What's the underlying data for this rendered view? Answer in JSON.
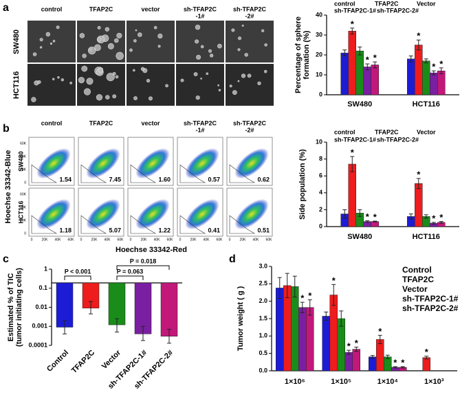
{
  "panel_labels": [
    "a",
    "b",
    "c",
    "d"
  ],
  "spheres": {
    "columns": [
      [
        "control"
      ],
      [
        "TFAP2C"
      ],
      [
        "vector"
      ],
      [
        "sh-TFAP2C",
        "-1#"
      ],
      [
        "sh-TFAP2C",
        "-2#"
      ]
    ],
    "rows": [
      "SW480",
      "HCT116"
    ]
  },
  "flow": {
    "columns": [
      [
        "control"
      ],
      [
        "TFAP2C"
      ],
      [
        "vector"
      ],
      [
        "sh-TFAP2C",
        "-1#"
      ],
      [
        "sh-TFAP2C",
        "-2#"
      ]
    ],
    "rows": [
      "SW480",
      "HCT116"
    ],
    "values": [
      [
        "1.54",
        "7.45",
        "1.60",
        "0.57",
        "0.62"
      ],
      [
        "1.18",
        "5.07",
        "1.22",
        "0.41",
        "0.51"
      ]
    ],
    "x_label": "Hoechse 33342-Red",
    "y_label": "Hoechse 33342-Blue",
    "ticks": [
      "0",
      "20K",
      "40K",
      "60K"
    ]
  },
  "chart_data": [
    {
      "type": "bar",
      "y_label": [
        "Percentage of sphere",
        "formation (%)"
      ],
      "categories": [
        "SW480",
        "HCT116"
      ],
      "ylim": [
        0,
        40
      ],
      "yticks": [
        0,
        10,
        20,
        30,
        40
      ],
      "series": [
        {
          "name": "control",
          "color": "#1c1cd6",
          "values": [
            21,
            18
          ],
          "errors": [
            1.5,
            1.5
          ]
        },
        {
          "name": "TFAP2C",
          "color": "#ee1c1c",
          "values": [
            32,
            25
          ],
          "errors": [
            1.5,
            2.5
          ],
          "annotations": [
            "*",
            "*"
          ]
        },
        {
          "name": "Vector",
          "color": "#1a8c1a",
          "values": [
            22,
            17
          ],
          "errors": [
            2,
            1
          ]
        },
        {
          "name": "sh-TFAP2C-1#",
          "color": "#7b1fa2",
          "values": [
            14,
            11
          ],
          "errors": [
            1.5,
            1
          ],
          "annotations": [
            "*",
            "*"
          ]
        },
        {
          "name": "sh-TFAP2C-2#",
          "color": "#c2187a",
          "values": [
            15,
            12
          ],
          "errors": [
            1.5,
            1.5
          ],
          "annotations": [
            "*",
            "*"
          ]
        }
      ]
    },
    {
      "type": "bar",
      "y_label": [
        "Side population (%)"
      ],
      "categories": [
        "SW480",
        "HCT116"
      ],
      "ylim": [
        0,
        10
      ],
      "yticks": [
        0,
        2,
        4,
        6,
        8,
        10
      ],
      "series": [
        {
          "name": "control",
          "color": "#1c1cd6",
          "values": [
            1.5,
            1.2
          ],
          "errors": [
            0.5,
            0.3
          ]
        },
        {
          "name": "TFAP2C",
          "color": "#ee1c1c",
          "values": [
            7.4,
            5.1
          ],
          "errors": [
            0.9,
            0.6
          ],
          "annotations": [
            "*",
            "*"
          ]
        },
        {
          "name": "Vector",
          "color": "#1a8c1a",
          "values": [
            1.6,
            1.2
          ],
          "errors": [
            0.4,
            0.2
          ]
        },
        {
          "name": "sh-TFAP2C-1#",
          "color": "#7b1fa2",
          "values": [
            0.6,
            0.4
          ],
          "errors": [
            0.1,
            0.1
          ],
          "annotations": [
            "*",
            "*"
          ]
        },
        {
          "name": "sh-TFAP2C-2#",
          "color": "#c2187a",
          "values": [
            0.6,
            0.5
          ],
          "errors": [
            0.05,
            0.1
          ],
          "annotations": [
            "*",
            "*"
          ]
        }
      ]
    },
    {
      "type": "bar",
      "log_scale": true,
      "y_label": [
        "Estimated % of TIC",
        "(tumor initiating cells)"
      ],
      "categories": [
        "Control",
        "TFAP2C",
        "Vector",
        "sh-TFAP2C-1#",
        "sh-TFAP2C-2#"
      ],
      "values": [
        0.0009,
        0.009,
        0.0012,
        0.0004,
        0.0003
      ],
      "error_ranges": [
        [
          0.0004,
          0.002
        ],
        [
          0.0045,
          0.02
        ],
        [
          0.0005,
          0.0025
        ],
        [
          0.00018,
          0.001
        ],
        [
          0.00013,
          0.0007
        ]
      ],
      "colors": [
        "#1c1cd6",
        "#ee1c1c",
        "#1a8c1a",
        "#7b1fa2",
        "#c2187a"
      ],
      "ylim": [
        0.0001,
        1
      ],
      "yticks": [
        0.0001,
        0.001,
        0.01,
        0.1,
        1
      ],
      "annotations": [
        "P < 0.001",
        "P = 0.063",
        "P = 0.018"
      ]
    },
    {
      "type": "bar",
      "y_label": [
        "Tumor weight ( g )"
      ],
      "categories": [
        "1×10⁶",
        "1×10⁵",
        "1×10⁴",
        "1×10³"
      ],
      "ylim": [
        0,
        3
      ],
      "yticks": [
        {
          "value": 0,
          "label": "0.0"
        },
        0.5,
        {
          "value": 1,
          "label": "1.0"
        },
        1.5,
        {
          "value": 2,
          "label": "2.0"
        },
        2.5,
        {
          "value": 3,
          "label": "3.0"
        }
      ],
      "series": [
        {
          "name": "Control",
          "color": "#1c1cd6",
          "values": [
            2.38,
            1.57,
            0.4,
            null
          ],
          "errors": [
            0.3,
            0.12,
            0.04,
            null
          ]
        },
        {
          "name": "TFAP2C",
          "color": "#ee1c1c",
          "values": [
            2.45,
            2.18,
            0.9,
            0.38
          ],
          "errors": [
            0.35,
            0.3,
            0.12,
            0.04
          ],
          "annotations": [
            null,
            "*",
            "*",
            "*"
          ]
        },
        {
          "name": "Vector",
          "color": "#1a8c1a",
          "values": [
            2.42,
            1.5,
            0.4,
            null
          ],
          "errors": [
            0.3,
            0.22,
            0.05,
            null
          ]
        },
        {
          "name": "sh-TFAP2C-1#",
          "color": "#7b1fa2",
          "values": [
            1.82,
            0.53,
            0.1,
            null
          ],
          "errors": [
            0.15,
            0.06,
            0.02,
            null
          ],
          "annotations": [
            "*",
            "*",
            "*",
            null
          ]
        },
        {
          "name": "sh-TFAP2C-2#",
          "color": "#c2187a",
          "values": [
            1.82,
            0.62,
            0.1,
            null
          ],
          "errors": [
            0.22,
            0.06,
            0.02,
            null
          ],
          "annotations": [
            "*",
            "*",
            "*",
            null
          ]
        }
      ]
    }
  ]
}
